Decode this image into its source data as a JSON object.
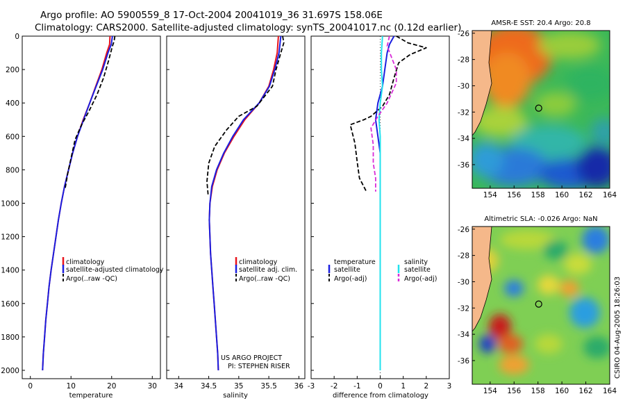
{
  "title_line1": "Argo profile: AO 5900559_8 17-Oct-2004 20041019_36 31.697S 158.06E",
  "title_line2": "Climatology: CARS2000. Satellite-adjusted climatology: synTS_20041017.nc (0.12d earlier)",
  "side_label": "CSIRO 04-Aug-2005 18:26:03",
  "credit_line1": "US ARGO PROJECT",
  "credit_line2": "PI: STEPHEN RISER",
  "colors": {
    "climatology": "#e8141c",
    "satellite": "#1a1ee0",
    "argo": "#000000",
    "sat_salinity": "#22e2ee",
    "argo_salinity": "#d92cd8"
  },
  "chart_data": [
    {
      "type": "line",
      "name": "temperature-profile",
      "xlabel": "temperature",
      "ylabel": "",
      "xlim": [
        -2,
        32
      ],
      "ylim": [
        2050,
        0
      ],
      "xticks": [
        0,
        10,
        20,
        30
      ],
      "yticks": [
        0,
        200,
        400,
        600,
        800,
        1000,
        1200,
        1400,
        1600,
        1800,
        2000
      ],
      "legend": [
        "climatology",
        "satellite-adjusted climatology",
        "Argo(..raw  -QC)"
      ],
      "series": [
        {
          "name": "climatology",
          "style": "solid",
          "color": "climatology",
          "points": [
            [
              19.6,
              0
            ],
            [
              19.5,
              50
            ],
            [
              18.8,
              100
            ],
            [
              17.6,
              200
            ],
            [
              16.1,
              300
            ],
            [
              14.6,
              400
            ],
            [
              13.0,
              500
            ],
            [
              11.6,
              600
            ],
            [
              10.4,
              700
            ],
            [
              9.4,
              800
            ],
            [
              8.4,
              900
            ],
            [
              7.6,
              1000
            ],
            [
              6.9,
              1100
            ],
            [
              6.3,
              1200
            ],
            [
              5.7,
              1300
            ],
            [
              5.1,
              1400
            ],
            [
              4.6,
              1500
            ],
            [
              4.2,
              1600
            ],
            [
              3.8,
              1700
            ],
            [
              3.5,
              1800
            ],
            [
              3.2,
              1900
            ],
            [
              3.0,
              2000
            ]
          ]
        },
        {
          "name": "satellite",
          "style": "solid",
          "color": "satellite",
          "points": [
            [
              20.2,
              0
            ],
            [
              19.9,
              50
            ],
            [
              19.1,
              100
            ],
            [
              17.8,
              200
            ],
            [
              16.2,
              300
            ],
            [
              14.6,
              400
            ],
            [
              13.1,
              500
            ],
            [
              11.6,
              600
            ],
            [
              10.4,
              700
            ],
            [
              9.4,
              800
            ],
            [
              8.4,
              900
            ],
            [
              7.6,
              1000
            ],
            [
              6.9,
              1100
            ],
            [
              6.3,
              1200
            ],
            [
              5.7,
              1300
            ],
            [
              5.1,
              1400
            ],
            [
              4.6,
              1500
            ],
            [
              4.2,
              1600
            ],
            [
              3.8,
              1700
            ],
            [
              3.5,
              1800
            ],
            [
              3.2,
              1900
            ],
            [
              3.0,
              2000
            ]
          ]
        },
        {
          "name": "argo",
          "style": "dash",
          "color": "argo",
          "points": [
            [
              20.8,
              0
            ],
            [
              20.6,
              30
            ],
            [
              20.2,
              60
            ],
            [
              19.2,
              150
            ],
            [
              18.0,
              250
            ],
            [
              16.4,
              350
            ],
            [
              14.4,
              450
            ],
            [
              12.6,
              530
            ],
            [
              11.0,
              620
            ],
            [
              10.1,
              720
            ],
            [
              9.2,
              820
            ],
            [
              8.5,
              920
            ]
          ]
        }
      ]
    },
    {
      "type": "line",
      "name": "salinity-profile",
      "xlabel": "salinity",
      "ylabel": "",
      "xlim": [
        33.8,
        36.1
      ],
      "ylim": [
        2050,
        0
      ],
      "xticks": [
        34,
        34.5,
        35,
        35.5,
        36
      ],
      "legend": [
        "climatology",
        "satellite adj. clim.",
        "Argo(..raw  -QC)"
      ],
      "series": [
        {
          "name": "climatology",
          "style": "solid",
          "color": "climatology",
          "points": [
            [
              35.66,
              0
            ],
            [
              35.64,
              100
            ],
            [
              35.58,
              200
            ],
            [
              35.5,
              300
            ],
            [
              35.34,
              400
            ],
            [
              35.1,
              500
            ],
            [
              34.92,
              600
            ],
            [
              34.76,
              700
            ],
            [
              34.64,
              800
            ],
            [
              34.56,
              900
            ],
            [
              34.52,
              1000
            ],
            [
              34.51,
              1100
            ],
            [
              34.52,
              1200
            ],
            [
              34.53,
              1300
            ],
            [
              34.55,
              1400
            ],
            [
              34.57,
              1500
            ],
            [
              34.59,
              1600
            ],
            [
              34.61,
              1700
            ],
            [
              34.63,
              1800
            ],
            [
              34.65,
              1900
            ],
            [
              34.66,
              2000
            ]
          ]
        },
        {
          "name": "satellite",
          "style": "solid",
          "color": "satellite",
          "points": [
            [
              35.7,
              0
            ],
            [
              35.67,
              100
            ],
            [
              35.6,
              200
            ],
            [
              35.51,
              300
            ],
            [
              35.34,
              400
            ],
            [
              35.08,
              500
            ],
            [
              34.9,
              600
            ],
            [
              34.75,
              700
            ],
            [
              34.63,
              800
            ],
            [
              34.55,
              900
            ],
            [
              34.52,
              1000
            ],
            [
              34.51,
              1100
            ],
            [
              34.52,
              1200
            ],
            [
              34.53,
              1300
            ],
            [
              34.55,
              1400
            ],
            [
              34.57,
              1500
            ],
            [
              34.59,
              1600
            ],
            [
              34.61,
              1700
            ],
            [
              34.63,
              1800
            ],
            [
              34.65,
              1900
            ],
            [
              34.66,
              2000
            ]
          ]
        },
        {
          "name": "argo",
          "style": "dash",
          "color": "argo",
          "points": [
            [
              35.73,
              0
            ],
            [
              35.75,
              40
            ],
            [
              35.7,
              100
            ],
            [
              35.62,
              200
            ],
            [
              35.56,
              300
            ],
            [
              35.3,
              420
            ],
            [
              35.0,
              480
            ],
            [
              34.8,
              560
            ],
            [
              34.6,
              660
            ],
            [
              34.5,
              760
            ],
            [
              34.47,
              870
            ],
            [
              34.49,
              950
            ]
          ]
        }
      ]
    },
    {
      "type": "line",
      "name": "difference-profile",
      "xlabel": "difference from climatology",
      "ylabel": "",
      "xlim": [
        -3,
        3
      ],
      "ylim": [
        2050,
        0
      ],
      "xticks": [
        -3,
        -2,
        -1,
        0,
        1,
        2,
        3
      ],
      "legend_left": [
        "temperature",
        "satellite",
        "Argo(-adj)"
      ],
      "legend_right": [
        "salinity",
        "satellite",
        "Argo(-adj)"
      ],
      "series": [
        {
          "name": "temperature-satellite",
          "style": "solid",
          "color": "satellite",
          "points": [
            [
              0.6,
              0
            ],
            [
              0.4,
              50
            ],
            [
              0.3,
              100
            ],
            [
              0.2,
              200
            ],
            [
              0.1,
              300
            ],
            [
              -0.1,
              400
            ],
            [
              -0.2,
              500
            ],
            [
              -0.1,
              600
            ],
            [
              0.0,
              700
            ],
            [
              0.0,
              900
            ],
            [
              0.0,
              2000
            ]
          ]
        },
        {
          "name": "temperature-argo",
          "style": "dash",
          "color": "argo",
          "points": [
            [
              0.7,
              0
            ],
            [
              1.2,
              40
            ],
            [
              2.0,
              70
            ],
            [
              1.3,
              110
            ],
            [
              0.8,
              160
            ],
            [
              0.6,
              250
            ],
            [
              0.4,
              350
            ],
            [
              0.1,
              420
            ],
            [
              -0.4,
              480
            ],
            [
              -0.7,
              500
            ],
            [
              -1.3,
              530
            ],
            [
              -1.1,
              640
            ],
            [
              -1.0,
              750
            ],
            [
              -0.9,
              850
            ],
            [
              -0.6,
              930
            ]
          ]
        },
        {
          "name": "salinity-satellite",
          "style": "solid",
          "color": "sat_salinity",
          "points": [
            [
              0.1,
              0
            ],
            [
              0.05,
              100
            ],
            [
              0.05,
              200
            ],
            [
              0.1,
              300
            ],
            [
              0.0,
              400
            ],
            [
              -0.05,
              500
            ],
            [
              0.0,
              600
            ],
            [
              0.0,
              800
            ],
            [
              0.0,
              1000
            ],
            [
              0.0,
              2000
            ]
          ]
        },
        {
          "name": "salinity-argo",
          "style": "dash",
          "color": "argo_salinity",
          "points": [
            [
              0.4,
              0
            ],
            [
              0.3,
              60
            ],
            [
              0.7,
              200
            ],
            [
              0.7,
              280
            ],
            [
              0.3,
              400
            ],
            [
              -0.1,
              480
            ],
            [
              -0.4,
              550
            ],
            [
              -0.3,
              650
            ],
            [
              -0.3,
              760
            ],
            [
              -0.2,
              850
            ],
            [
              -0.2,
              930
            ]
          ]
        }
      ]
    },
    {
      "type": "heatmap",
      "name": "sst-map",
      "title": "AMSR-E SST: 20.4   Argo: 20.8",
      "xlim": [
        152.5,
        164
      ],
      "ylim": [
        -37.8,
        -25.8
      ],
      "xticks": [
        154,
        156,
        158,
        160,
        162,
        164
      ],
      "yticks": [
        -26,
        -28,
        -30,
        -32,
        -34,
        -36
      ],
      "marker": [
        158.06,
        -31.697
      ]
    },
    {
      "type": "heatmap",
      "name": "sla-map",
      "title": "Altimetric SLA: -0.026  Argo: NaN",
      "xlim": [
        152.5,
        164
      ],
      "ylim": [
        -37.8,
        -25.8
      ],
      "xticks": [
        154,
        156,
        158,
        160,
        162,
        164
      ],
      "yticks": [
        -26,
        -28,
        -30,
        -32,
        -34,
        -36
      ],
      "marker": [
        158.06,
        -31.697
      ]
    }
  ]
}
